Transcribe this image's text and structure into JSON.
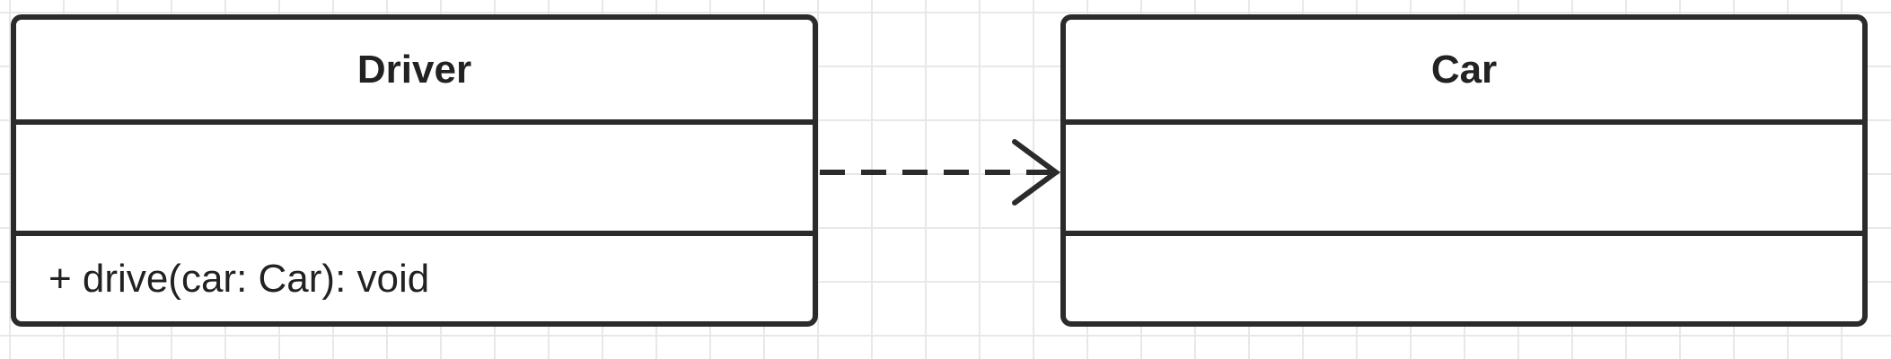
{
  "classes": [
    {
      "name": "Driver",
      "attributes": [],
      "methods": [
        "+ drive(car: Car): void"
      ]
    },
    {
      "name": "Car",
      "attributes": [],
      "methods": []
    }
  ],
  "relationship": {
    "type": "dependency",
    "from": "Driver",
    "to": "Car",
    "line_style": "dashed",
    "arrowhead": "open"
  },
  "colors": {
    "stroke": "#2b2b2b",
    "text": "#222222",
    "grid": "#e8e8e8",
    "background": "#ffffff"
  }
}
